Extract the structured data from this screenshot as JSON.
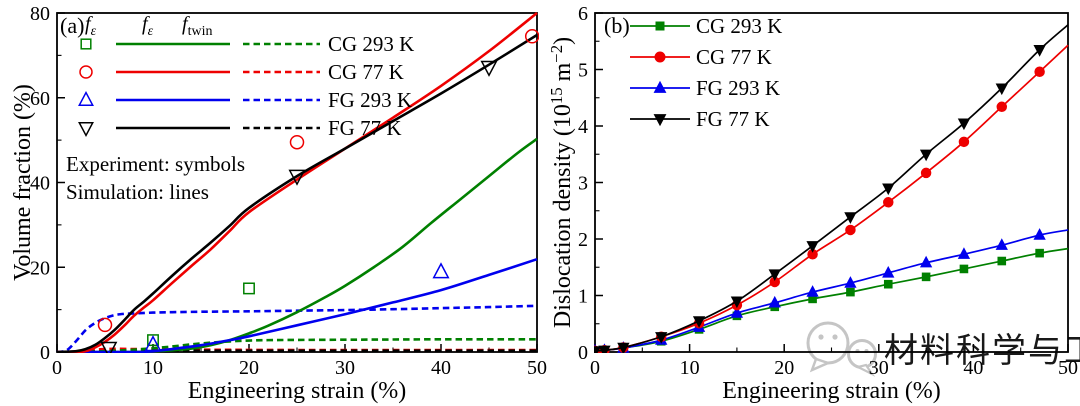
{
  "watermark": {
    "text": "材料科学与工程",
    "color": "#c3c3c3"
  },
  "chart_data": [
    {
      "id": "a",
      "type": "line",
      "panel_label": "(a)",
      "xlabel": "Engineering strain (%)",
      "ylabel": "Volume fraction (%)",
      "ylabel_rich": [
        {
          "t": "Volume fraction (%)"
        }
      ],
      "xlim": [
        0,
        50
      ],
      "ylim": [
        0,
        80
      ],
      "xticks": [
        0,
        10,
        20,
        30,
        40,
        50
      ],
      "yticks": [
        0,
        20,
        40,
        60,
        80
      ],
      "x_minor": 5,
      "y_minor": 10,
      "grid": false,
      "legend_position": "top-left",
      "notes": [
        "Experiment: symbols",
        "Simulation: lines"
      ],
      "legend": {
        "headers": [
          [
            {
              "t": "f",
              "i": 1
            },
            {
              "t": "ε",
              "sub": 1,
              "i": 1
            }
          ],
          [
            {
              "t": "f",
              "i": 1
            },
            {
              "t": "ε",
              "sub": 1,
              "i": 1
            }
          ],
          [
            {
              "t": "f",
              "i": 1
            },
            {
              "t": "twin",
              "sub": 1
            }
          ]
        ],
        "rows": [
          {
            "label": "CG 293 K",
            "color": "#008000",
            "marker": "square"
          },
          {
            "label": "CG 77 K",
            "color": "#ee0000",
            "marker": "circle"
          },
          {
            "label": "FG 293 K",
            "color": "#0000ee",
            "marker": "triangle-up"
          },
          {
            "label": "FG 77 K",
            "color": "#000000",
            "marker": "triangle-down"
          }
        ]
      },
      "series": [
        {
          "name": "CG 77 K twin simulation",
          "style": "dashed",
          "color": "#ee0000",
          "x": [
            0,
            2,
            3,
            4,
            5,
            6,
            8,
            10,
            15,
            20,
            30,
            40,
            50
          ],
          "y": [
            0,
            0.1,
            0.3,
            0.55,
            0.7,
            0.75,
            0.7,
            0.65,
            0.55,
            0.5,
            0.45,
            0.45,
            0.45
          ]
        },
        {
          "name": "FG 77 K twin simulation",
          "style": "dashed",
          "color": "#000000",
          "x": [
            0,
            3,
            5,
            8,
            10,
            20,
            30,
            40,
            50
          ],
          "y": [
            0,
            0.05,
            0.15,
            0.25,
            0.3,
            0.3,
            0.3,
            0.3,
            0.3
          ]
        },
        {
          "name": "CG 293 K twin simulation",
          "style": "dashed",
          "color": "#008000",
          "x": [
            0,
            4,
            6,
            8,
            10,
            12,
            14,
            16,
            18,
            20,
            22,
            25,
            30,
            35,
            40,
            45,
            50
          ],
          "y": [
            0,
            0.1,
            0.3,
            0.55,
            0.9,
            1.3,
            1.8,
            2.2,
            2.5,
            2.7,
            2.8,
            2.85,
            2.9,
            2.95,
            3.0,
            3.0,
            3.0
          ]
        },
        {
          "name": "FG 293 K twin simulation",
          "style": "dashed",
          "color": "#0000ee",
          "x": [
            0,
            1,
            2,
            3,
            4,
            5,
            6,
            7,
            8,
            10,
            12,
            15,
            20,
            25,
            30,
            35,
            40,
            45,
            50
          ],
          "y": [
            0,
            0.4,
            2.6,
            5.2,
            6.9,
            8.0,
            8.7,
            9.0,
            9.1,
            9.3,
            9.4,
            9.5,
            9.6,
            9.75,
            9.9,
            10.1,
            10.35,
            10.6,
            10.9
          ]
        },
        {
          "name": "CG 293 K martensite simulation",
          "style": "solid",
          "color": "#008000",
          "x": [
            0,
            8,
            10,
            12,
            14,
            16,
            18,
            20,
            22,
            25,
            28,
            30,
            33,
            36,
            39,
            42,
            45,
            48,
            50
          ],
          "y": [
            0,
            0,
            0.2,
            0.4,
            0.8,
            1.6,
            2.8,
            4.4,
            6.2,
            9.4,
            13,
            15.6,
            20,
            24.8,
            30.5,
            36,
            41.5,
            47,
            50.3
          ]
        },
        {
          "name": "FG 293 K martensite simulation",
          "style": "solid",
          "color": "#0000ee",
          "x": [
            0,
            8,
            10,
            12,
            15,
            18,
            20,
            25,
            30,
            35,
            40,
            45,
            50
          ],
          "y": [
            0,
            0,
            0.2,
            0.7,
            1.6,
            2.8,
            3.7,
            6.3,
            8.9,
            11.7,
            14.6,
            18.2,
            21.9
          ]
        },
        {
          "name": "CG 77 K martensite simulation",
          "style": "solid",
          "color": "#ee0000",
          "x": [
            0,
            2,
            3,
            4,
            5,
            6,
            7,
            8,
            9,
            10,
            12,
            14,
            16,
            18,
            20,
            25,
            30,
            35,
            40,
            45,
            50
          ],
          "y": [
            0,
            0,
            0.2,
            1.1,
            2.4,
            4.1,
            6.2,
            8.5,
            10.4,
            12.2,
            16.3,
            20.3,
            24.2,
            28.6,
            33,
            40.7,
            48,
            55.3,
            62.8,
            71,
            80
          ]
        },
        {
          "name": "FG 77 K martensite simulation",
          "style": "solid",
          "color": "#000000",
          "x": [
            0,
            2,
            3,
            4,
            5,
            6,
            7,
            8,
            9,
            10,
            12,
            14,
            16,
            18,
            20,
            25,
            30,
            35,
            40,
            45,
            50
          ],
          "y": [
            0,
            0.2,
            0.7,
            1.7,
            3.3,
            5.2,
            7.5,
            9.9,
            11.8,
            13.8,
            18,
            22,
            25.8,
            29.8,
            34,
            41.5,
            48,
            54.5,
            61,
            67.8,
            74.8
          ]
        },
        {
          "name": "CG 293 K experiment",
          "style": "scatter",
          "marker": "square",
          "color": "#008000",
          "x": [
            10,
            20
          ],
          "y": [
            2.8,
            15
          ]
        },
        {
          "name": "CG 77 K experiment",
          "style": "scatter",
          "marker": "circle",
          "color": "#ee0000",
          "x": [
            5,
            25,
            49.5
          ],
          "y": [
            6.4,
            49.5,
            74.5
          ]
        },
        {
          "name": "FG 293 K experiment",
          "style": "scatter",
          "marker": "triangle-up",
          "color": "#0000ee",
          "x": [
            10,
            40
          ],
          "y": [
            1.7,
            18.9
          ]
        },
        {
          "name": "FG 77 K experiment",
          "style": "scatter",
          "marker": "triangle-down",
          "color": "#000000",
          "x": [
            5.4,
            25,
            45
          ],
          "y": [
            0.9,
            41.5,
            67.2
          ]
        }
      ]
    },
    {
      "id": "b",
      "type": "line",
      "panel_label": "(b)",
      "xlabel": "Engineering strain (%)",
      "ylabel": "Dislocation density (10¹⁵ m⁻²)",
      "ylabel_rich": [
        {
          "t": "Dislocation density (10"
        },
        {
          "t": "15",
          "sup": 1
        },
        {
          "t": " m"
        },
        {
          "t": "−2",
          "sup": 1
        },
        {
          "t": ")"
        }
      ],
      "xlim": [
        0,
        50
      ],
      "ylim": [
        0,
        6
      ],
      "xticks": [
        0,
        10,
        20,
        30,
        40,
        50
      ],
      "yticks": [
        0,
        1,
        2,
        3,
        4,
        5,
        6
      ],
      "x_minor": 5,
      "y_minor": 0.5,
      "grid": false,
      "legend_position": "top-left",
      "legend": {
        "rows": [
          {
            "label": "CG 293 K",
            "color": "#008000",
            "marker": "square"
          },
          {
            "label": "CG 77 K",
            "color": "#ee0000",
            "marker": "circle"
          },
          {
            "label": "FG 293 K",
            "color": "#0000ee",
            "marker": "triangle-up"
          },
          {
            "label": "FG 77 K",
            "color": "#000000",
            "marker": "triangle-down"
          }
        ]
      },
      "series": [
        {
          "name": "CG 293 K",
          "style": "line-marker",
          "marker": "square",
          "color": "#008000",
          "skip_last_marker": true,
          "x": [
            0,
            1,
            3,
            7,
            11,
            15,
            19,
            23,
            27,
            31,
            35,
            39,
            43,
            47,
            50
          ],
          "y": [
            0.02,
            0.03,
            0.07,
            0.19,
            0.4,
            0.64,
            0.8,
            0.94,
            1.06,
            1.2,
            1.33,
            1.47,
            1.61,
            1.75,
            1.83
          ]
        },
        {
          "name": "FG 293 K",
          "style": "line-marker",
          "marker": "triangle-up",
          "color": "#0000ee",
          "skip_last_marker": true,
          "x": [
            0,
            1,
            3,
            7,
            11,
            15,
            19,
            23,
            27,
            31,
            35,
            39,
            43,
            47,
            50
          ],
          "y": [
            0.02,
            0.03,
            0.07,
            0.21,
            0.44,
            0.69,
            0.87,
            1.06,
            1.22,
            1.4,
            1.58,
            1.73,
            1.89,
            2.07,
            2.16
          ]
        },
        {
          "name": "CG 77 K",
          "style": "line-marker",
          "marker": "circle",
          "color": "#ee0000",
          "skip_last_marker": true,
          "x": [
            0,
            1,
            3,
            7,
            11,
            15,
            19,
            23,
            27,
            31,
            35,
            39,
            43,
            47,
            50
          ],
          "y": [
            0.02,
            0.03,
            0.08,
            0.27,
            0.51,
            0.83,
            1.24,
            1.73,
            2.16,
            2.65,
            3.17,
            3.72,
            4.34,
            4.96,
            5.43
          ]
        },
        {
          "name": "FG 77 K",
          "style": "line-marker",
          "marker": "triangle-down",
          "color": "#000000",
          "skip_last_marker": true,
          "x": [
            0,
            1,
            3,
            7,
            11,
            15,
            19,
            23,
            27,
            31,
            35,
            39,
            43,
            47,
            50
          ],
          "y": [
            0.02,
            0.03,
            0.08,
            0.27,
            0.55,
            0.9,
            1.38,
            1.88,
            2.39,
            2.9,
            3.5,
            4.05,
            4.67,
            5.35,
            5.79
          ]
        }
      ]
    }
  ]
}
